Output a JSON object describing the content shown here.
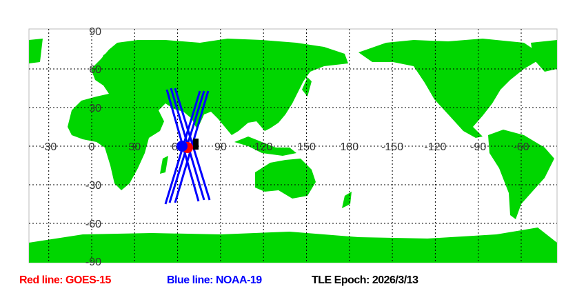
{
  "map": {
    "land_color": "#00d600",
    "ocean_color": "#ffffff",
    "grid": true,
    "lon_labels": [
      "-30",
      "0",
      "30",
      "60",
      "90",
      "120",
      "150",
      "180",
      "-150",
      "-120",
      "-90",
      "-60"
    ],
    "lat_labels": [
      "90",
      "60",
      "30",
      "-30",
      "-60",
      "-90"
    ],
    "satellites": [
      {
        "name": "GOES-15",
        "color": "#ff0000",
        "lon": 67,
        "lat": -1
      },
      {
        "name": "NOAA-19",
        "color": "#0000ff",
        "lon": 63,
        "lat": 0
      }
    ],
    "track_color": "#0000ff"
  },
  "legend": {
    "red": "Red line: GOES-15",
    "blue": "Blue line: NOAA-19",
    "epoch": "TLE Epoch: 2026/3/13"
  }
}
